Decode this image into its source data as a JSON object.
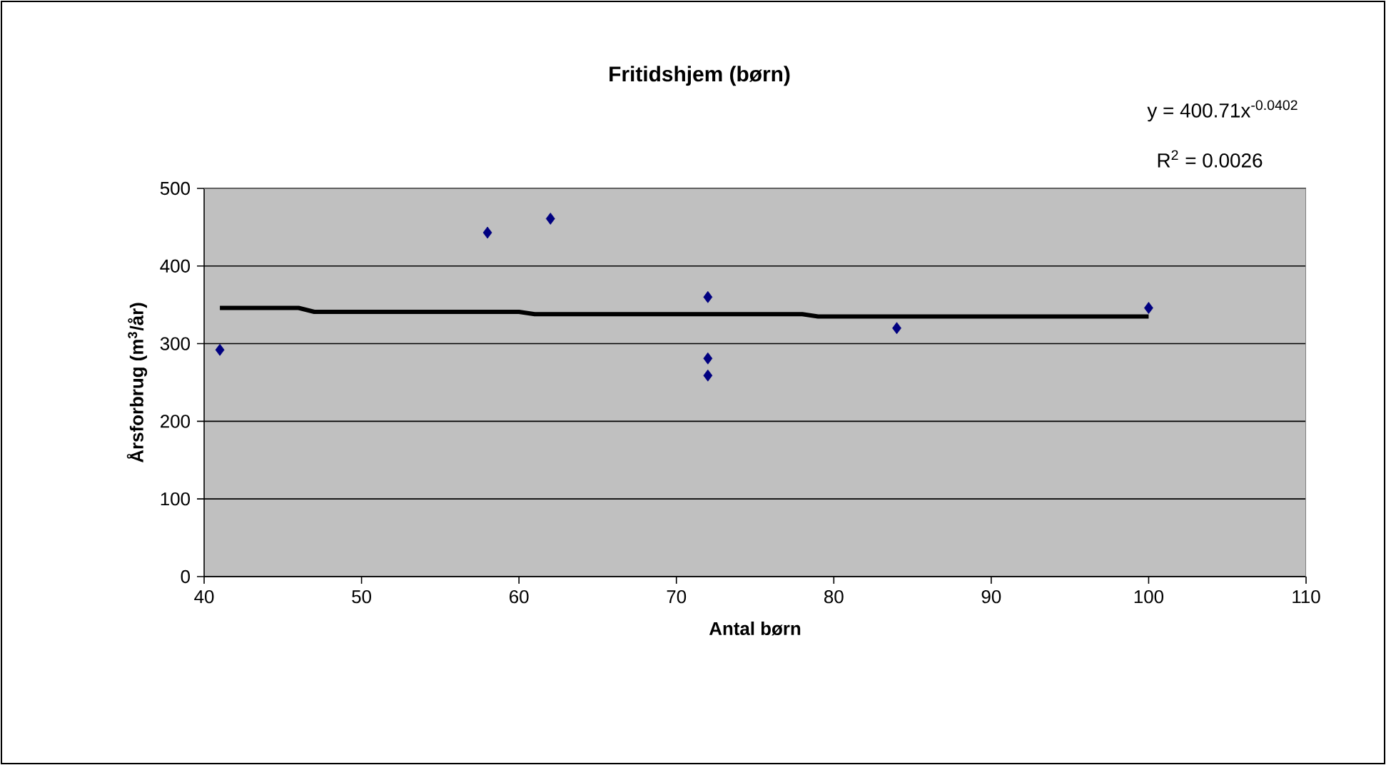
{
  "chart_data": {
    "type": "scatter",
    "title": "Fritidshjem (børn)",
    "xlabel": "Antal børn",
    "ylabel": "Årsforbrug (m$^{3}$/år)",
    "annotations": [
      "y = 400.71x$^{-0.0402}$",
      "R$^{2}$ = 0.0026"
    ],
    "xlim": [
      40,
      110
    ],
    "xticks": [
      40,
      50,
      60,
      70,
      80,
      90,
      100,
      110
    ],
    "ylim": [
      0,
      500
    ],
    "yticks": [
      0,
      100,
      200,
      300,
      400,
      500
    ],
    "grid": "y",
    "series": [
      {
        "type": "scatter",
        "color": "#000080",
        "marker": "diamond",
        "x": [
          41,
          58,
          62,
          72,
          72,
          72,
          84,
          100
        ],
        "values": [
          292,
          443,
          461,
          360,
          281,
          259,
          320,
          346
        ]
      },
      {
        "type": "line",
        "color": "#000000",
        "marker": "none",
        "line_style": "solid",
        "x": [
          41,
          46,
          47,
          60,
          61,
          78,
          79,
          100
        ],
        "values": [
          346,
          346,
          341,
          341,
          338,
          338,
          335,
          335
        ]
      }
    ]
  }
}
